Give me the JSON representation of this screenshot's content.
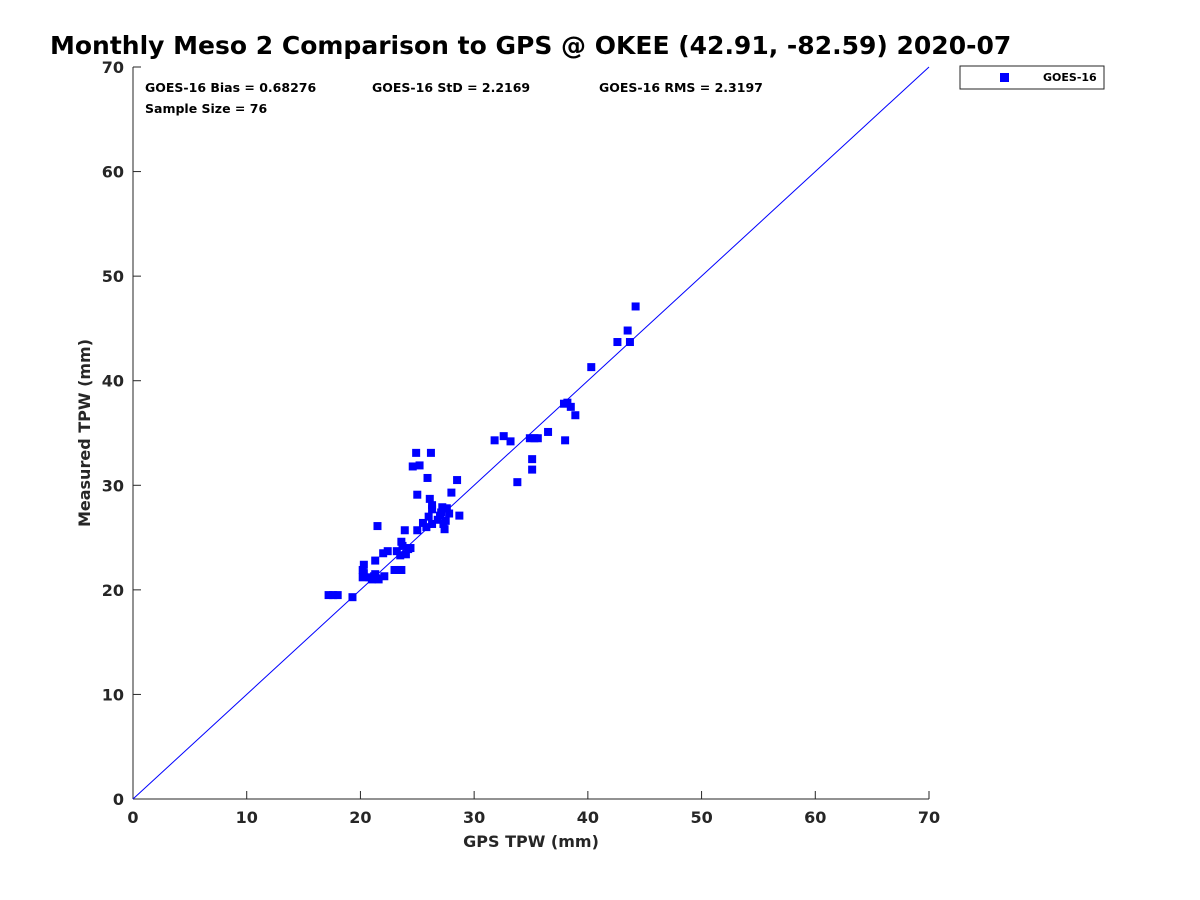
{
  "chart_data": {
    "type": "scatter",
    "title": "Monthly Meso 2 Comparison to GPS @ OKEE (42.91, -82.59) 2020-07",
    "xlabel": "GPS TPW (mm)",
    "ylabel": "Measured TPW (mm)",
    "xlim": [
      0,
      70
    ],
    "ylim": [
      0,
      70
    ],
    "xticks": [
      "0",
      "10",
      "20",
      "30",
      "40",
      "50",
      "60",
      "70"
    ],
    "yticks": [
      "0",
      "10",
      "20",
      "30",
      "40",
      "50",
      "60",
      "70"
    ],
    "grid": false,
    "legend_position": "outside-top-right",
    "annotations": {
      "bias": "GOES-16 Bias = 0.68276",
      "std": "GOES-16 StD = 2.2169",
      "rms": "GOES-16 RMS = 2.3197",
      "sample_size": "Sample Size = 76"
    },
    "reference_line": {
      "type": "one-to-one",
      "from": [
        0,
        0
      ],
      "to": [
        70,
        70
      ],
      "color": "#0000ff"
    },
    "series": [
      {
        "name": "GOES-16",
        "marker": "square",
        "color": "#0000ff",
        "points": [
          [
            17.2,
            19.5
          ],
          [
            17.6,
            19.5
          ],
          [
            18.0,
            19.5
          ],
          [
            19.3,
            19.3
          ],
          [
            20.2,
            21.2
          ],
          [
            20.3,
            21.6
          ],
          [
            20.2,
            21.9
          ],
          [
            20.3,
            22.4
          ],
          [
            20.8,
            21.2
          ],
          [
            21.0,
            21.0
          ],
          [
            21.2,
            21.3
          ],
          [
            21.4,
            21.1
          ],
          [
            21.6,
            21.0
          ],
          [
            21.3,
            21.5
          ],
          [
            21.5,
            26.1
          ],
          [
            21.3,
            22.8
          ],
          [
            22.0,
            23.5
          ],
          [
            22.1,
            21.3
          ],
          [
            22.4,
            23.7
          ],
          [
            23.0,
            21.9
          ],
          [
            23.4,
            21.9
          ],
          [
            23.6,
            21.9
          ],
          [
            23.2,
            23.7
          ],
          [
            23.5,
            23.3
          ],
          [
            23.7,
            24.2
          ],
          [
            23.6,
            24.6
          ],
          [
            23.9,
            25.7
          ],
          [
            24.0,
            23.4
          ],
          [
            24.2,
            23.9
          ],
          [
            24.4,
            24.0
          ],
          [
            24.6,
            31.8
          ],
          [
            24.9,
            33.1
          ],
          [
            25.0,
            29.1
          ],
          [
            25.0,
            25.7
          ],
          [
            25.2,
            31.9
          ],
          [
            25.5,
            26.4
          ],
          [
            25.8,
            26.0
          ],
          [
            25.9,
            30.7
          ],
          [
            26.0,
            27.0
          ],
          [
            26.1,
            28.7
          ],
          [
            26.2,
            33.1
          ],
          [
            26.3,
            27.7
          ],
          [
            26.3,
            28.1
          ],
          [
            26.3,
            26.3
          ],
          [
            26.8,
            26.7
          ],
          [
            27.0,
            27.1
          ],
          [
            27.2,
            27.9
          ],
          [
            27.3,
            26.3
          ],
          [
            27.4,
            25.8
          ],
          [
            27.5,
            26.6
          ],
          [
            27.6,
            27.8
          ],
          [
            27.8,
            27.3
          ],
          [
            28.0,
            29.3
          ],
          [
            28.5,
            30.5
          ],
          [
            28.7,
            27.1
          ],
          [
            31.8,
            34.3
          ],
          [
            32.6,
            34.7
          ],
          [
            33.2,
            34.2
          ],
          [
            33.8,
            30.3
          ],
          [
            34.9,
            34.5
          ],
          [
            35.1,
            32.5
          ],
          [
            35.1,
            31.5
          ],
          [
            35.3,
            34.5
          ],
          [
            35.6,
            34.5
          ],
          [
            36.5,
            35.1
          ],
          [
            37.9,
            37.8
          ],
          [
            38.0,
            34.3
          ],
          [
            38.2,
            37.9
          ],
          [
            38.5,
            37.5
          ],
          [
            38.9,
            36.7
          ],
          [
            40.3,
            41.3
          ],
          [
            42.6,
            43.7
          ],
          [
            43.5,
            44.8
          ],
          [
            43.7,
            43.7
          ],
          [
            44.2,
            47.1
          ],
          [
            27.1,
            27.4
          ]
        ]
      }
    ]
  }
}
